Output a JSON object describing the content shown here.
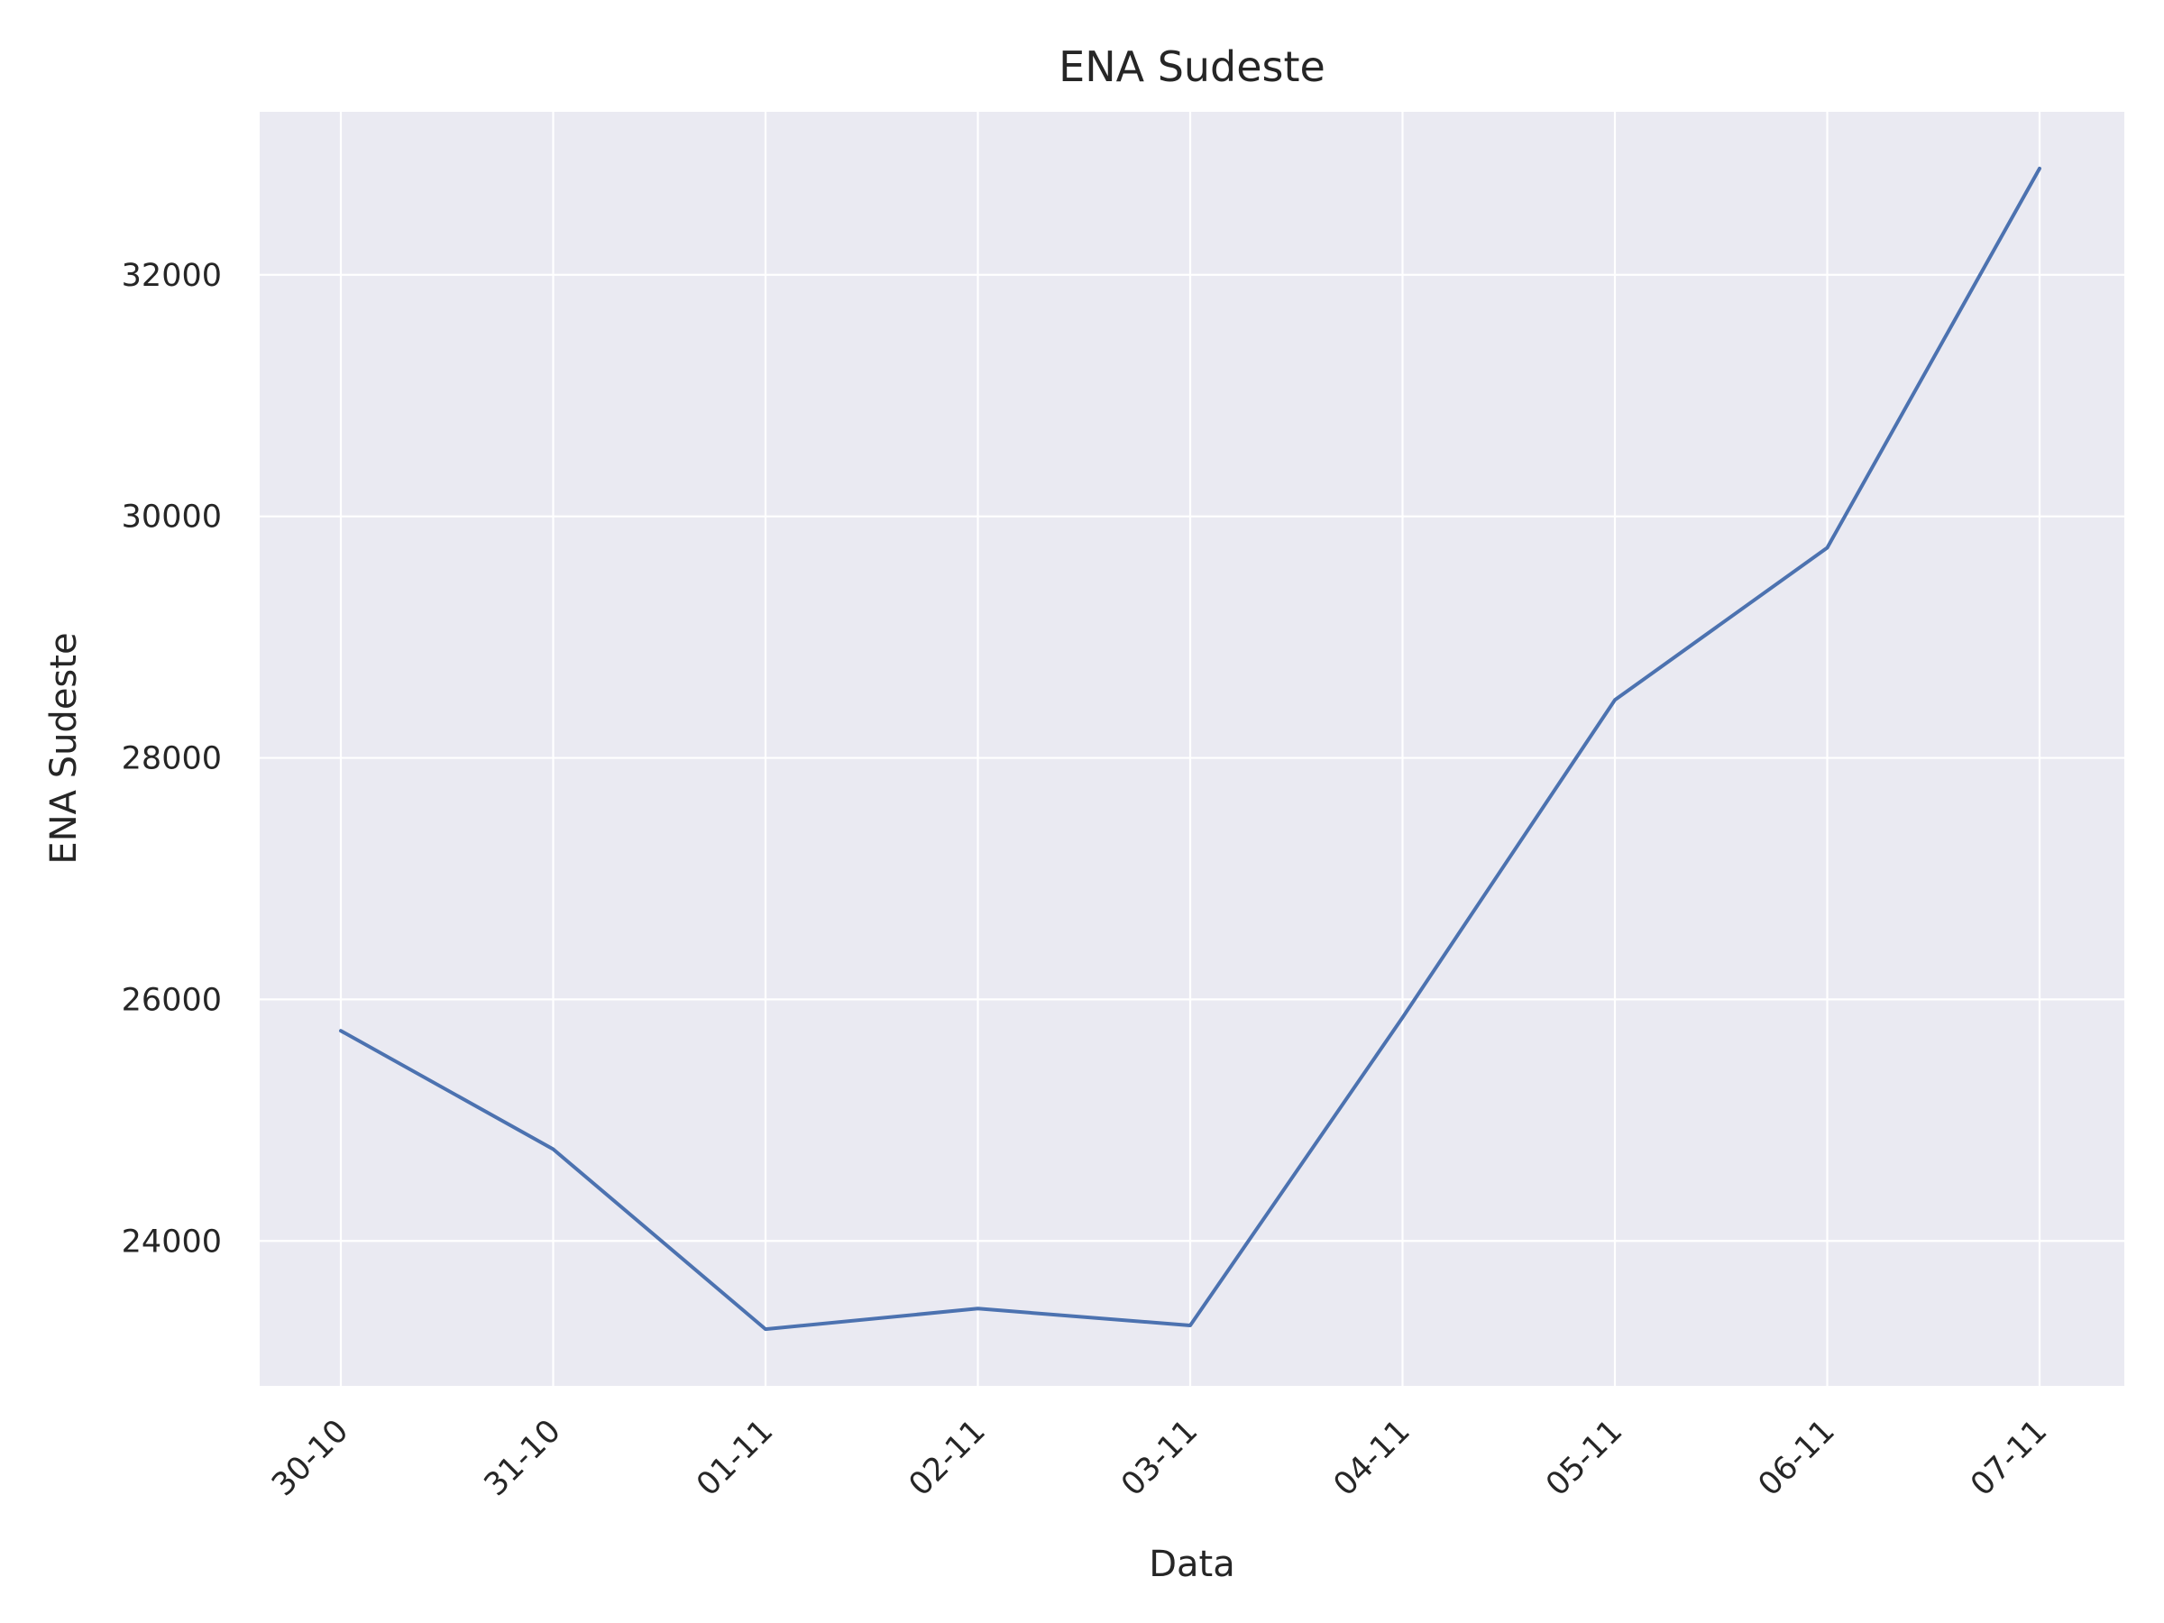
{
  "chart_data": {
    "type": "line",
    "title": "ENA Sudeste",
    "xlabel": "Data",
    "ylabel": "ENA Sudeste",
    "x": [
      "30-10",
      "31-10",
      "01-11",
      "02-11",
      "03-11",
      "04-11",
      "05-11",
      "06-11",
      "07-11"
    ],
    "series": [
      {
        "name": "",
        "values": [
          25740,
          24760,
          23270,
          23440,
          23300,
          25850,
          28480,
          29740,
          32880
        ]
      }
    ],
    "yticks": [
      24000,
      26000,
      28000,
      30000,
      32000
    ],
    "ylim": [
      22800,
      33350
    ],
    "grid": true,
    "colors": {
      "line": "#4c72b0",
      "plot_bg": "#eaeaf2",
      "grid": "#ffffff",
      "text": "#262626"
    }
  }
}
